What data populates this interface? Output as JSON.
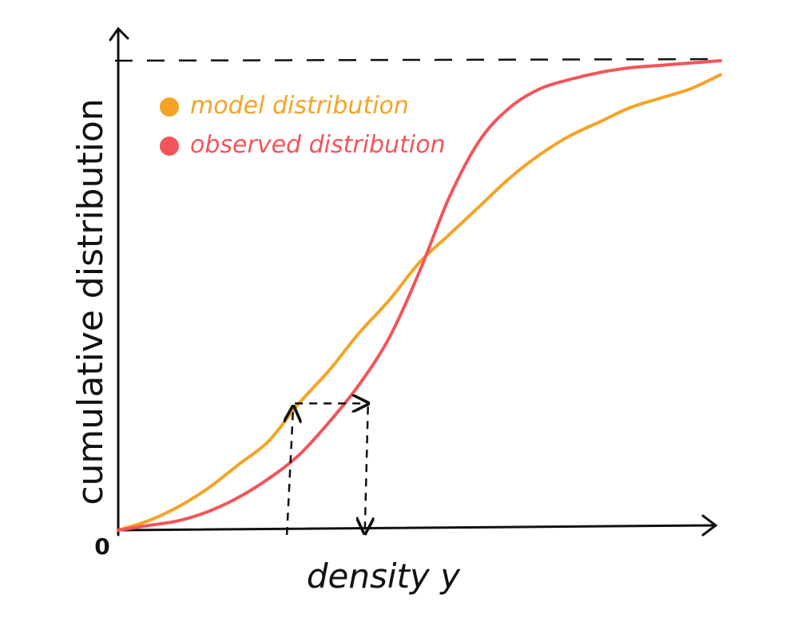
{
  "chart_data": {
    "type": "line",
    "xlabel": "density y",
    "ylabel": "cumulative distribution",
    "origin_label": "0",
    "xlim": [
      0,
      1
    ],
    "ylim": [
      0,
      1
    ],
    "grid": false,
    "legend_position": "top-left",
    "colors": {
      "model": "#F5A326",
      "observed": "#F2555A",
      "axes": "#111111"
    },
    "series": [
      {
        "name": "model distribution",
        "color": "#F5A326",
        "x": [
          0.0,
          0.05,
          0.1,
          0.15,
          0.2,
          0.25,
          0.3,
          0.35,
          0.4,
          0.45,
          0.5,
          0.55,
          0.6,
          0.65,
          0.7,
          0.75,
          0.8,
          0.85,
          0.9,
          0.95,
          1.0
        ],
        "values": [
          0.0,
          0.02,
          0.05,
          0.09,
          0.14,
          0.19,
          0.27,
          0.34,
          0.42,
          0.49,
          0.57,
          0.63,
          0.69,
          0.75,
          0.8,
          0.84,
          0.87,
          0.9,
          0.92,
          0.94,
          0.97
        ]
      },
      {
        "name": "observed distribution",
        "color": "#F2555A",
        "x": [
          0.0,
          0.05,
          0.1,
          0.15,
          0.2,
          0.25,
          0.3,
          0.35,
          0.4,
          0.45,
          0.5,
          0.55,
          0.6,
          0.65,
          0.7,
          0.75,
          0.8,
          0.85,
          0.9,
          0.95,
          1.0
        ],
        "values": [
          0.0,
          0.01,
          0.02,
          0.04,
          0.07,
          0.11,
          0.16,
          0.23,
          0.31,
          0.41,
          0.55,
          0.71,
          0.83,
          0.9,
          0.94,
          0.96,
          0.975,
          0.985,
          0.99,
          0.995,
          1.0
        ]
      }
    ],
    "reference_line": {
      "y": 1.0,
      "style": "dashed"
    },
    "mapping_annotation": {
      "from_x": 0.28,
      "to_x": 0.42,
      "y": 0.27
    }
  }
}
